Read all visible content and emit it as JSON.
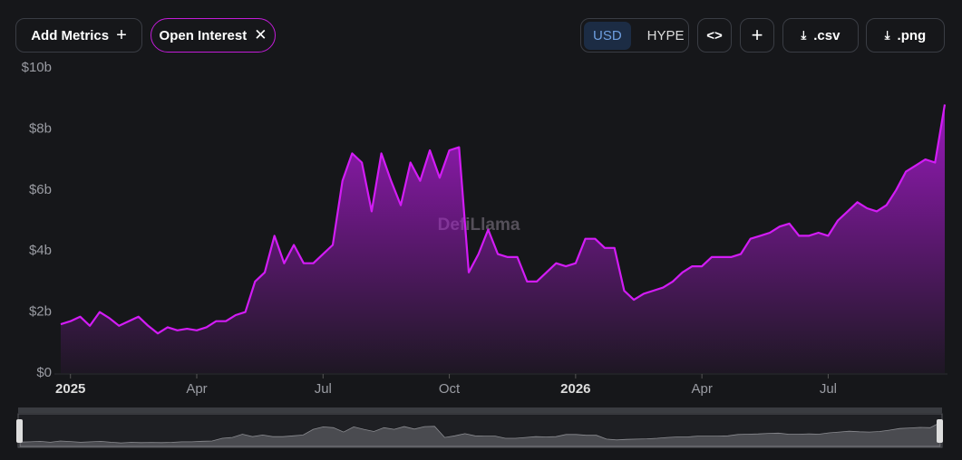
{
  "toolbar": {
    "add_metrics": "Add Metrics",
    "metric": "Open Interest",
    "currencies": [
      "USD",
      "HYPE"
    ],
    "csv": ".csv",
    "png": ".png"
  },
  "watermark": "DefiLlama",
  "chart_data": {
    "type": "area",
    "color": "#d21cf5",
    "categories": [
      null,
      "2025",
      null,
      null,
      null,
      null,
      null,
      null,
      null,
      null,
      null,
      null,
      null,
      null,
      "Apr",
      null,
      null,
      null,
      null,
      null,
      null,
      null,
      null,
      null,
      null,
      null,
      null,
      "Jul",
      null,
      null,
      null,
      null,
      null,
      null,
      null,
      null,
      null,
      null,
      null,
      null,
      "Oct",
      null,
      null,
      null,
      null,
      null,
      null,
      null,
      null,
      null,
      null,
      null,
      null,
      "2026",
      null,
      null,
      null,
      null,
      null,
      null,
      null,
      null,
      null,
      null,
      null,
      null,
      "Apr",
      null,
      null,
      null,
      null,
      null,
      null,
      null,
      null,
      null,
      null,
      null,
      null,
      "Jul",
      null,
      null,
      null,
      null,
      null,
      null,
      null,
      null,
      null,
      null,
      null,
      null
    ],
    "values": [
      1.6,
      1.7,
      1.85,
      1.55,
      2.0,
      1.8,
      1.55,
      1.7,
      1.85,
      1.55,
      1.3,
      1.5,
      1.4,
      1.45,
      1.4,
      1.5,
      1.7,
      1.7,
      1.9,
      2.0,
      3.0,
      3.3,
      4.5,
      3.6,
      4.2,
      3.6,
      3.6,
      3.9,
      4.2,
      6.3,
      7.2,
      6.9,
      5.3,
      7.2,
      6.3,
      5.5,
      6.9,
      6.3,
      7.3,
      6.4,
      7.3,
      7.4,
      3.3,
      3.9,
      4.7,
      3.9,
      3.8,
      3.8,
      3.0,
      3.0,
      3.3,
      3.6,
      3.5,
      3.6,
      4.4,
      4.4,
      4.1,
      4.1,
      2.7,
      2.4,
      2.6,
      2.7,
      2.8,
      3.0,
      3.3,
      3.5,
      3.5,
      3.8,
      3.8,
      3.8,
      3.9,
      4.4,
      4.5,
      4.6,
      4.8,
      4.9,
      4.5,
      4.5,
      4.6,
      4.5,
      5.0,
      5.3,
      5.6,
      5.4,
      5.3,
      5.5,
      6.0,
      6.6,
      6.8,
      7.0,
      6.9,
      8.8
    ],
    "ylim": [
      0,
      10
    ],
    "yticks": [
      {
        "value": 0,
        "label": "$0"
      },
      {
        "value": 2,
        "label": "$2b"
      },
      {
        "value": 4,
        "label": "$4b"
      },
      {
        "value": 6,
        "label": "$6b"
      },
      {
        "value": 8,
        "label": "$8b"
      },
      {
        "value": 10,
        "label": "$10b"
      }
    ],
    "grid": false
  }
}
